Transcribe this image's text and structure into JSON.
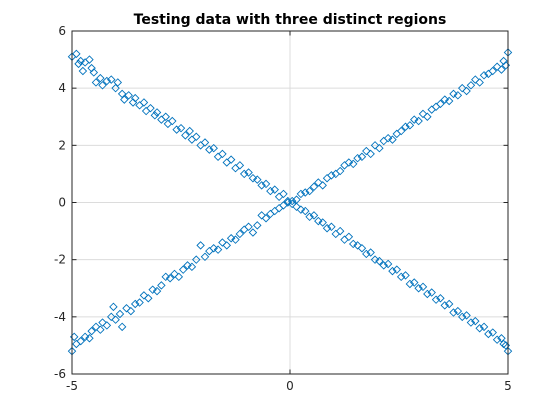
{
  "chart_data": {
    "type": "scatter",
    "title": "Testing data with three distinct regions",
    "xlabel": "",
    "ylabel": "",
    "xlim": [
      -5,
      5
    ],
    "ylim": [
      -6,
      6
    ],
    "xticks": [
      -5,
      0,
      5
    ],
    "yticks": [
      -6,
      -4,
      -2,
      0,
      2,
      4,
      6
    ],
    "xtick_labels": [
      "-5",
      "0",
      "5"
    ],
    "ytick_labels": [
      "-6",
      "-4",
      "-2",
      "0",
      "2",
      "4",
      "6"
    ],
    "grid": true,
    "marker": "diamond-open",
    "marker_color": "#0072BD",
    "series": [
      {
        "values_note": "",
        "points": [
          [
            -5.0,
            5.1
          ],
          [
            -4.9,
            5.2
          ],
          [
            -4.85,
            4.85
          ],
          [
            -4.8,
            4.95
          ],
          [
            -4.75,
            4.6
          ],
          [
            -4.7,
            4.9
          ],
          [
            -4.6,
            5.0
          ],
          [
            -4.55,
            4.7
          ],
          [
            -4.5,
            4.55
          ],
          [
            -4.45,
            4.2
          ],
          [
            -4.35,
            4.35
          ],
          [
            -4.3,
            4.1
          ],
          [
            -4.2,
            4.25
          ],
          [
            -4.1,
            4.3
          ],
          [
            -4.0,
            4.0
          ],
          [
            -3.95,
            4.2
          ],
          [
            -3.85,
            3.8
          ],
          [
            -3.8,
            3.6
          ],
          [
            -3.7,
            3.75
          ],
          [
            -3.6,
            3.5
          ],
          [
            -3.55,
            3.65
          ],
          [
            -3.45,
            3.4
          ],
          [
            -3.35,
            3.5
          ],
          [
            -3.3,
            3.2
          ],
          [
            -3.2,
            3.3
          ],
          [
            -3.1,
            3.05
          ],
          [
            -3.05,
            3.15
          ],
          [
            -2.95,
            2.9
          ],
          [
            -2.85,
            3.0
          ],
          [
            -2.8,
            2.75
          ],
          [
            -2.7,
            2.85
          ],
          [
            -2.6,
            2.55
          ],
          [
            -2.5,
            2.6
          ],
          [
            -2.4,
            2.35
          ],
          [
            -2.3,
            2.5
          ],
          [
            -2.25,
            2.2
          ],
          [
            -2.15,
            2.3
          ],
          [
            -2.05,
            2.0
          ],
          [
            -1.95,
            2.1
          ],
          [
            -1.85,
            1.85
          ],
          [
            -1.75,
            1.9
          ],
          [
            -1.65,
            1.6
          ],
          [
            -1.55,
            1.7
          ],
          [
            -1.45,
            1.4
          ],
          [
            -1.35,
            1.5
          ],
          [
            -1.25,
            1.2
          ],
          [
            -1.15,
            1.3
          ],
          [
            -1.05,
            1.0
          ],
          [
            -0.95,
            1.05
          ],
          [
            -0.85,
            0.85
          ],
          [
            -0.75,
            0.8
          ],
          [
            -0.65,
            0.6
          ],
          [
            -0.55,
            0.65
          ],
          [
            -0.45,
            0.4
          ],
          [
            -0.35,
            0.45
          ],
          [
            -0.25,
            0.2
          ],
          [
            -0.15,
            0.3
          ],
          [
            -0.05,
            0.05
          ],
          [
            0.05,
            -0.05
          ],
          [
            0.15,
            -0.15
          ],
          [
            0.25,
            -0.25
          ],
          [
            0.35,
            -0.3
          ],
          [
            0.45,
            -0.5
          ],
          [
            0.55,
            -0.45
          ],
          [
            0.65,
            -0.65
          ],
          [
            0.75,
            -0.7
          ],
          [
            0.85,
            -0.9
          ],
          [
            0.95,
            -0.85
          ],
          [
            1.05,
            -1.1
          ],
          [
            1.15,
            -1.0
          ],
          [
            1.25,
            -1.3
          ],
          [
            1.35,
            -1.2
          ],
          [
            1.45,
            -1.45
          ],
          [
            1.55,
            -1.5
          ],
          [
            1.65,
            -1.6
          ],
          [
            1.75,
            -1.8
          ],
          [
            1.85,
            -1.75
          ],
          [
            1.95,
            -2.0
          ],
          [
            2.05,
            -2.05
          ],
          [
            2.15,
            -2.2
          ],
          [
            2.25,
            -2.15
          ],
          [
            2.35,
            -2.4
          ],
          [
            2.45,
            -2.35
          ],
          [
            2.55,
            -2.6
          ],
          [
            2.65,
            -2.55
          ],
          [
            2.75,
            -2.85
          ],
          [
            2.85,
            -2.8
          ],
          [
            2.95,
            -3.0
          ],
          [
            3.05,
            -2.95
          ],
          [
            3.15,
            -3.2
          ],
          [
            3.25,
            -3.15
          ],
          [
            3.35,
            -3.4
          ],
          [
            3.45,
            -3.35
          ],
          [
            3.55,
            -3.6
          ],
          [
            3.65,
            -3.55
          ],
          [
            3.75,
            -3.85
          ],
          [
            3.85,
            -3.8
          ],
          [
            3.95,
            -4.0
          ],
          [
            4.05,
            -3.95
          ],
          [
            4.15,
            -4.2
          ],
          [
            4.25,
            -4.15
          ],
          [
            4.35,
            -4.4
          ],
          [
            4.45,
            -4.35
          ],
          [
            4.55,
            -4.6
          ],
          [
            4.65,
            -4.55
          ],
          [
            4.75,
            -4.8
          ],
          [
            4.85,
            -4.75
          ],
          [
            4.9,
            -4.95
          ],
          [
            4.95,
            -5.0
          ],
          [
            5.0,
            -5.2
          ]
        ]
      },
      {
        "values_note": "",
        "points": [
          [
            -5.0,
            -5.2
          ],
          [
            -4.95,
            -4.7
          ],
          [
            -4.9,
            -4.95
          ],
          [
            -4.8,
            -4.85
          ],
          [
            -4.7,
            -4.7
          ],
          [
            -4.6,
            -4.75
          ],
          [
            -4.55,
            -4.5
          ],
          [
            -4.45,
            -4.35
          ],
          [
            -4.35,
            -4.45
          ],
          [
            -4.3,
            -4.2
          ],
          [
            -4.2,
            -4.3
          ],
          [
            -4.1,
            -4.0
          ],
          [
            -4.05,
            -3.65
          ],
          [
            -4.0,
            -4.1
          ],
          [
            -3.9,
            -3.9
          ],
          [
            -3.85,
            -4.35
          ],
          [
            -3.75,
            -3.7
          ],
          [
            -3.65,
            -3.8
          ],
          [
            -3.55,
            -3.55
          ],
          [
            -3.45,
            -3.5
          ],
          [
            -3.35,
            -3.25
          ],
          [
            -3.25,
            -3.35
          ],
          [
            -3.15,
            -3.05
          ],
          [
            -3.05,
            -3.1
          ],
          [
            -2.95,
            -2.9
          ],
          [
            -2.85,
            -2.6
          ],
          [
            -2.75,
            -2.65
          ],
          [
            -2.65,
            -2.5
          ],
          [
            -2.55,
            -2.6
          ],
          [
            -2.45,
            -2.35
          ],
          [
            -2.35,
            -2.2
          ],
          [
            -2.25,
            -2.25
          ],
          [
            -2.15,
            -2.0
          ],
          [
            -2.05,
            -1.5
          ],
          [
            -1.95,
            -1.9
          ],
          [
            -1.85,
            -1.7
          ],
          [
            -1.75,
            -1.6
          ],
          [
            -1.65,
            -1.65
          ],
          [
            -1.55,
            -1.4
          ],
          [
            -1.45,
            -1.5
          ],
          [
            -1.35,
            -1.25
          ],
          [
            -1.25,
            -1.3
          ],
          [
            -1.15,
            -1.1
          ],
          [
            -1.05,
            -0.95
          ],
          [
            -0.95,
            -0.85
          ],
          [
            -0.85,
            -1.05
          ],
          [
            -0.75,
            -0.8
          ],
          [
            -0.65,
            -0.45
          ],
          [
            -0.55,
            -0.55
          ],
          [
            -0.45,
            -0.4
          ],
          [
            -0.35,
            -0.3
          ],
          [
            -0.25,
            -0.2
          ],
          [
            -0.15,
            -0.1
          ],
          [
            -0.05,
            0.0
          ],
          [
            0.05,
            0.05
          ],
          [
            0.15,
            0.1
          ],
          [
            0.25,
            0.3
          ],
          [
            0.35,
            0.35
          ],
          [
            0.45,
            0.4
          ],
          [
            0.55,
            0.55
          ],
          [
            0.65,
            0.7
          ],
          [
            0.75,
            0.6
          ],
          [
            0.85,
            0.85
          ],
          [
            0.95,
            0.95
          ],
          [
            1.05,
            1.0
          ],
          [
            1.15,
            1.1
          ],
          [
            1.25,
            1.3
          ],
          [
            1.35,
            1.4
          ],
          [
            1.45,
            1.35
          ],
          [
            1.55,
            1.55
          ],
          [
            1.65,
            1.6
          ],
          [
            1.75,
            1.8
          ],
          [
            1.85,
            1.7
          ],
          [
            1.95,
            2.0
          ],
          [
            2.05,
            1.9
          ],
          [
            2.15,
            2.15
          ],
          [
            2.25,
            2.25
          ],
          [
            2.35,
            2.2
          ],
          [
            2.45,
            2.4
          ],
          [
            2.55,
            2.5
          ],
          [
            2.65,
            2.65
          ],
          [
            2.75,
            2.7
          ],
          [
            2.85,
            2.9
          ],
          [
            2.95,
            2.85
          ],
          [
            3.05,
            3.1
          ],
          [
            3.15,
            3.0
          ],
          [
            3.25,
            3.25
          ],
          [
            3.35,
            3.35
          ],
          [
            3.45,
            3.45
          ],
          [
            3.55,
            3.6
          ],
          [
            3.65,
            3.55
          ],
          [
            3.75,
            3.8
          ],
          [
            3.85,
            3.75
          ],
          [
            3.95,
            4.0
          ],
          [
            4.05,
            3.9
          ],
          [
            4.15,
            4.1
          ],
          [
            4.25,
            4.3
          ],
          [
            4.35,
            4.2
          ],
          [
            4.45,
            4.45
          ],
          [
            4.55,
            4.5
          ],
          [
            4.65,
            4.6
          ],
          [
            4.75,
            4.75
          ],
          [
            4.85,
            4.65
          ],
          [
            4.9,
            4.95
          ],
          [
            4.95,
            4.8
          ],
          [
            5.0,
            5.25
          ]
        ]
      }
    ]
  }
}
